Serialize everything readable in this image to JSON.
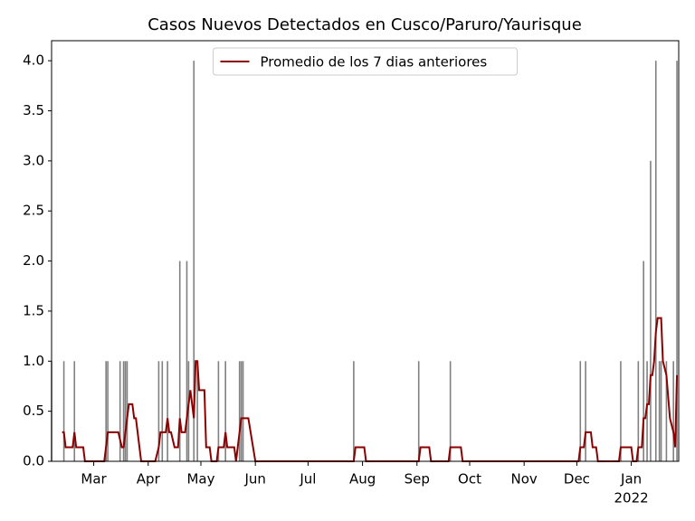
{
  "chart_data": {
    "type": "bar+line",
    "title": "Casos Nuevos Detectados en Cusco/Paruro/Yaurisque",
    "legend": "upper center",
    "xlim": [
      4,
      361
    ],
    "ylim": [
      0,
      4.2
    ],
    "yticks": [
      {
        "value": 0,
        "label": "0.0"
      },
      {
        "value": 0.5,
        "label": "0.5"
      },
      {
        "value": 1,
        "label": "1.0"
      },
      {
        "value": 1.5,
        "label": "1.5"
      },
      {
        "value": 2,
        "label": "2.0"
      },
      {
        "value": 2.5,
        "label": "2.5"
      },
      {
        "value": 3,
        "label": "3.0"
      },
      {
        "value": 3.5,
        "label": "3.5"
      },
      {
        "value": 4,
        "label": "4.0"
      }
    ],
    "xticks": [
      {
        "value": 28,
        "label": "Mar"
      },
      {
        "value": 59,
        "label": "Apr"
      },
      {
        "value": 89,
        "label": "May"
      },
      {
        "value": 120,
        "label": "Jun"
      },
      {
        "value": 150,
        "label": "Jul"
      },
      {
        "value": 181,
        "label": "Aug"
      },
      {
        "value": 212,
        "label": "Sep"
      },
      {
        "value": 242,
        "label": "Oct"
      },
      {
        "value": 273,
        "label": "Nov"
      },
      {
        "value": 303,
        "label": "Dec"
      },
      {
        "value": 334,
        "label": "Jan"
      }
    ],
    "xtick_year": "2022",
    "bars": {
      "color": "#808080",
      "x": [
        4,
        11,
        17,
        35,
        36,
        43,
        45,
        46,
        47,
        65,
        67,
        70,
        77,
        81,
        82,
        85,
        87,
        99,
        103,
        111,
        112,
        113,
        176,
        213,
        231,
        305,
        308,
        328,
        338,
        341,
        343,
        345,
        348,
        350,
        351,
        354,
        358,
        360
      ],
      "values": [
        1,
        1,
        1,
        1,
        1,
        1,
        1,
        1,
        1,
        1,
        1,
        1,
        2,
        2,
        1,
        4,
        1,
        1,
        1,
        1,
        1,
        1,
        1,
        1,
        1,
        1,
        1,
        1,
        1,
        2,
        1,
        3,
        4,
        1,
        1,
        1,
        1,
        4
      ]
    },
    "series": [
      {
        "name": "Promedio de los 7 dias anteriores",
        "color": "#8b0000",
        "x": [
          10,
          11,
          12,
          16,
          17,
          18,
          22,
          23,
          34,
          36,
          42,
          44,
          45,
          47,
          48,
          50,
          51,
          52,
          55,
          63,
          65,
          66,
          69,
          70,
          71,
          72,
          74,
          76,
          77,
          78,
          80,
          82,
          83,
          85,
          86,
          87,
          88,
          91,
          92,
          94,
          95,
          98,
          99,
          102,
          103,
          104,
          108,
          109,
          111,
          112,
          116,
          120,
          176,
          177,
          182,
          183,
          213,
          214,
          219,
          220,
          230,
          231,
          237,
          238,
          304,
          305,
          307,
          308,
          311,
          312,
          314,
          315,
          327,
          328,
          334,
          335,
          337,
          338,
          340,
          341,
          342,
          343,
          344,
          345,
          346,
          347,
          348,
          349,
          351,
          352,
          354,
          356,
          358,
          359,
          360
        ],
        "values": [
          0.29,
          0.29,
          0.14,
          0.14,
          0.29,
          0.14,
          0.14,
          0,
          0,
          0.29,
          0.29,
          0.14,
          0.14,
          0.43,
          0.57,
          0.57,
          0.43,
          0.43,
          0,
          0,
          0.14,
          0.29,
          0.29,
          0.43,
          0.29,
          0.29,
          0.14,
          0.14,
          0.43,
          0.29,
          0.29,
          0.57,
          0.71,
          0.43,
          1,
          1,
          0.71,
          0.71,
          0.14,
          0.14,
          0,
          0,
          0.14,
          0.14,
          0.29,
          0.14,
          0.14,
          0,
          0.29,
          0.43,
          0.43,
          0,
          0,
          0.14,
          0.14,
          0,
          0,
          0.14,
          0.14,
          0,
          0,
          0.14,
          0.14,
          0,
          0,
          0.14,
          0.14,
          0.29,
          0.29,
          0.14,
          0.14,
          0,
          0,
          0.14,
          0.14,
          0,
          0,
          0.14,
          0.14,
          0.43,
          0.43,
          0.57,
          0.57,
          0.86,
          0.86,
          1,
          1.29,
          1.43,
          1.43,
          1,
          0.86,
          0.43,
          0.29,
          0.14,
          0.86
        ]
      }
    ]
  }
}
